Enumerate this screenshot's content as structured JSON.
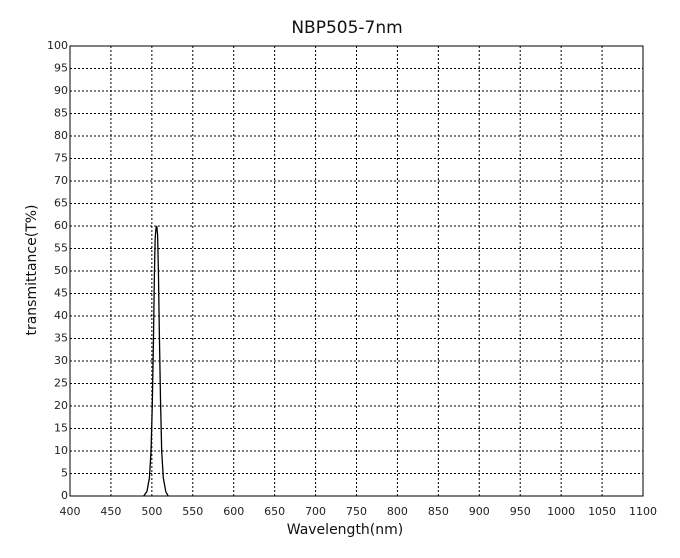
{
  "chart_data": {
    "type": "line",
    "title": "NBP505-7nm",
    "xlabel": "Wavelength(nm)",
    "ylabel": "transmittance(T%)",
    "xlim": [
      400,
      1100
    ],
    "ylim": [
      0,
      100
    ],
    "xticks": [
      400,
      450,
      500,
      550,
      600,
      650,
      700,
      750,
      800,
      850,
      900,
      950,
      1000,
      1050,
      1100
    ],
    "yticks": [
      0,
      5,
      10,
      15,
      20,
      25,
      30,
      35,
      40,
      45,
      50,
      55,
      60,
      65,
      70,
      75,
      80,
      85,
      90,
      95,
      100
    ],
    "grid": true,
    "series": [
      {
        "x": [
          490,
          494,
          497,
          499,
          500.5,
          502,
          503,
          504,
          505,
          506,
          507,
          508,
          509,
          510.5,
          512,
          514,
          517,
          520
        ],
        "y": [
          0,
          1,
          4,
          10,
          20,
          35,
          48,
          57,
          59.5,
          60,
          58,
          50,
          38,
          22,
          10,
          4,
          1,
          0
        ]
      }
    ]
  }
}
